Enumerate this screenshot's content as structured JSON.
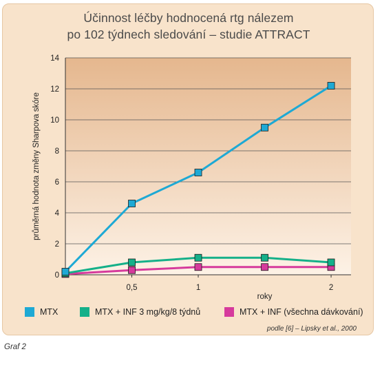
{
  "chart_data": {
    "type": "line",
    "title_lines": [
      "Účinnost léčby hodnocená rtg nálezem",
      "po 102 týdnech sledování – studie ATTRACT"
    ],
    "ylabel": "průměrná hodnota změny Sharpova skóre",
    "xlabel": "roky",
    "ylim": [
      0,
      14
    ],
    "xlim": [
      0,
      2.15
    ],
    "y_ticks": [
      0,
      2,
      4,
      6,
      8,
      10,
      12,
      14
    ],
    "x_ticks": [
      {
        "value": 0.5,
        "label": "0,5"
      },
      {
        "value": 1,
        "label": "1"
      },
      {
        "value": 2,
        "label": "2"
      }
    ],
    "grid": true,
    "series": [
      {
        "name": "MTX",
        "color": "#1ea9d4",
        "x": [
          0,
          0.5,
          1,
          1.5,
          2
        ],
        "y": [
          0.2,
          4.6,
          6.6,
          9.5,
          12.2
        ]
      },
      {
        "name": "MTX + INF 3 mg/kg/8 týdnů",
        "color": "#15b089",
        "x": [
          0,
          0.5,
          1,
          1.5,
          2
        ],
        "y": [
          0.1,
          0.8,
          1.1,
          1.1,
          0.8
        ]
      },
      {
        "name": "MTX + INF (všechna dávkování)",
        "color": "#d63a9c",
        "x": [
          0,
          0.5,
          1,
          1.5,
          2
        ],
        "y": [
          0.05,
          0.3,
          0.5,
          0.5,
          0.5
        ]
      }
    ]
  },
  "source": "podle [6] – Lipsky et al., 2000",
  "caption": "Graf 2"
}
